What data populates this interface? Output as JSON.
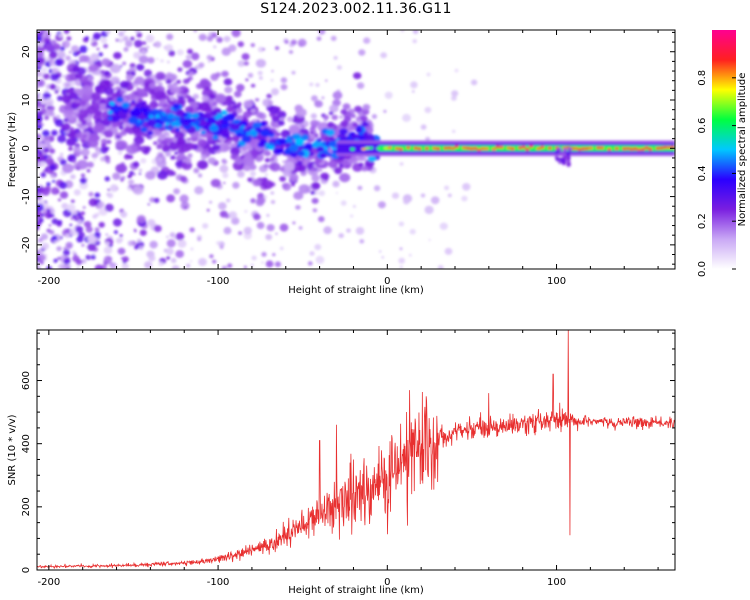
{
  "title": "S124.2023.002.11.36.G11",
  "chart_data": [
    {
      "type": "heatmap",
      "xlabel": "Height of straight line (km)",
      "ylabel": "Frequency (Hz)",
      "xlim": [
        -207,
        170
      ],
      "ylim": [
        -25,
        24.5
      ],
      "xticks": [
        -200,
        -100,
        0,
        100
      ],
      "yticks": [
        -20,
        -10,
        0,
        10,
        20
      ],
      "colorbar": {
        "label": "Normalized spectral amplitude",
        "range": [
          0,
          1
        ],
        "ticks": [
          0.0,
          0.2,
          0.4,
          0.6,
          0.8
        ],
        "colors": [
          "#ffffff",
          "#c9a8f5",
          "#7a1fe0",
          "#2a00ff",
          "#00c8ff",
          "#00ff40",
          "#ffff00",
          "#ff2020",
          "#ff0090"
        ]
      },
      "description_data": {
        "ridge_center_hz": [
          {
            "x": -165,
            "y": 8
          },
          {
            "x": -120,
            "y": 6
          },
          {
            "x": -90,
            "y": 4
          },
          {
            "x": -60,
            "y": 1
          },
          {
            "x": -45,
            "y": -1
          },
          {
            "x": -30,
            "y": 1
          },
          {
            "x": -15,
            "y": 2
          },
          {
            "x": 0,
            "y": 0
          },
          {
            "x": 100,
            "y": 0
          },
          {
            "x": 170,
            "y": 0
          }
        ]
      }
    },
    {
      "type": "line",
      "xlabel": "Height of straight line (km)",
      "ylabel": "SNR (10 * v/v)",
      "xlim": [
        -207,
        170
      ],
      "ylim": [
        0,
        760
      ],
      "xticks": [
        -200,
        -100,
        0,
        100
      ],
      "yticks": [
        0,
        200,
        400,
        600
      ],
      "series_color": "#e83030",
      "envelope": [
        {
          "x": -207,
          "y": 10
        },
        {
          "x": -150,
          "y": 15
        },
        {
          "x": -110,
          "y": 25
        },
        {
          "x": -90,
          "y": 45
        },
        {
          "x": -70,
          "y": 80
        },
        {
          "x": -50,
          "y": 140
        },
        {
          "x": -30,
          "y": 210
        },
        {
          "x": -10,
          "y": 260
        },
        {
          "x": 0,
          "y": 290
        },
        {
          "x": 10,
          "y": 340
        },
        {
          "x": 20,
          "y": 400
        },
        {
          "x": 30,
          "y": 420
        },
        {
          "x": 50,
          "y": 450
        },
        {
          "x": 80,
          "y": 460
        },
        {
          "x": 100,
          "y": 470
        },
        {
          "x": 120,
          "y": 470
        },
        {
          "x": 170,
          "y": 465
        }
      ],
      "spikes": [
        {
          "x": -40,
          "y": 410
        },
        {
          "x": -30,
          "y": 460
        },
        {
          "x": -20,
          "y": 350
        },
        {
          "x": 10,
          "y": 400
        },
        {
          "x": 60,
          "y": 560
        },
        {
          "x": 98,
          "y": 620
        },
        {
          "x": 107,
          "y": 760
        },
        {
          "x": 108,
          "y": 110
        }
      ]
    }
  ]
}
